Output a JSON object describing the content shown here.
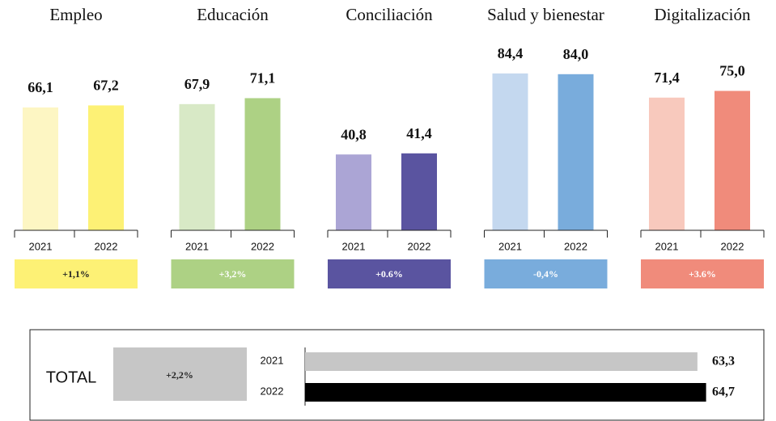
{
  "chart_data": [
    {
      "type": "bar",
      "title": "Empleo",
      "categories": [
        "2021",
        "2022"
      ],
      "values": [
        66.1,
        67.2
      ],
      "value_labels": [
        "66,1",
        "67,2"
      ],
      "colors": [
        "#fdf6c3",
        "#fdf175"
      ],
      "annotation": "+1,1%",
      "annotation_color": "#fdf175",
      "annotation_text_color": "#222222"
    },
    {
      "type": "bar",
      "title": "Educación",
      "categories": [
        "2021",
        "2022"
      ],
      "values": [
        67.9,
        71.1
      ],
      "value_labels": [
        "67,9",
        "71,1"
      ],
      "colors": [
        "#d8e9c6",
        "#add184"
      ],
      "annotation": "+3,2%",
      "annotation_color": "#add184",
      "annotation_text_color": "#ffffff"
    },
    {
      "type": "bar",
      "title": "Conciliación",
      "categories": [
        "2021",
        "2022"
      ],
      "values": [
        40.8,
        41.4
      ],
      "value_labels": [
        "40,8",
        "41,4"
      ],
      "colors": [
        "#aba5d5",
        "#5a54a0"
      ],
      "annotation": "+0.6%",
      "annotation_color": "#5a54a0",
      "annotation_text_color": "#ffffff"
    },
    {
      "type": "bar",
      "title": "Salud y bienestar",
      "categories": [
        "2021",
        "2022"
      ],
      "values": [
        84.4,
        84.0
      ],
      "value_labels": [
        "84,4",
        "84,0"
      ],
      "colors": [
        "#c4d8ef",
        "#79acdc"
      ],
      "annotation": "-0,4%",
      "annotation_color": "#79acdc",
      "annotation_text_color": "#ffffff"
    },
    {
      "type": "bar",
      "title": "Digitalización",
      "categories": [
        "2021",
        "2022"
      ],
      "values": [
        71.4,
        75.0
      ],
      "value_labels": [
        "71,4",
        "75,0"
      ],
      "colors": [
        "#f8c9bd",
        "#f08b7b"
      ],
      "annotation": "+3.6%",
      "annotation_color": "#f08b7b",
      "annotation_text_color": "#ffffff"
    },
    {
      "type": "hbar",
      "title": "TOTAL",
      "categories": [
        "2021",
        "2022"
      ],
      "values": [
        63.3,
        64.7
      ],
      "value_labels": [
        "63,3",
        "64,7"
      ],
      "colors": [
        "#c6c6c6",
        "#000000"
      ],
      "annotation": "+2,2%",
      "annotation_color": "#c6c6c6",
      "annotation_text_color": "#222222"
    }
  ]
}
